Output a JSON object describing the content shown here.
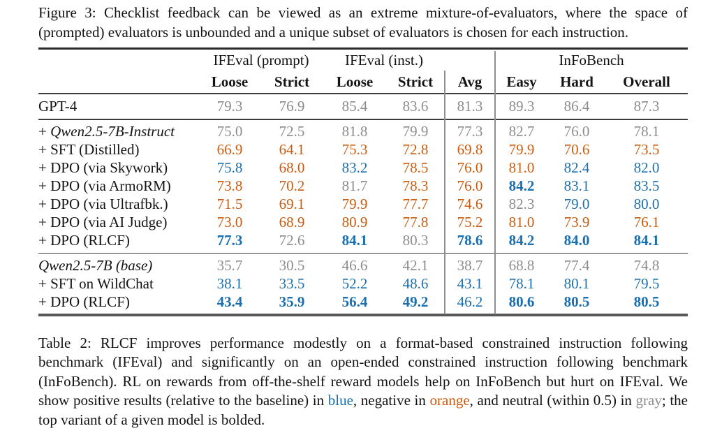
{
  "colors": {
    "ink": "#131313",
    "blue": "#1b6faf",
    "orange": "#cc5b0e",
    "gray": "#8c8c8c"
  },
  "figure_caption": "Figure 3: Checklist feedback can be viewed as an extreme mixture-of-evaluators, where the space of (prompted) evaluators is unbounded and a unique subset of evaluators is chosen for each instruction.",
  "chart_data": {
    "type": "table",
    "title": "Table 2 results",
    "columns": [
      "IFEval (prompt) Loose",
      "IFEval (prompt) Strict",
      "IFEval (inst.) Loose",
      "IFEval (inst.) Strict",
      "Avg",
      "InFoBench Easy",
      "InFoBench Hard",
      "InFoBench Overall"
    ],
    "rows": [
      {
        "model": "GPT-4",
        "values": [
          79.3,
          76.9,
          85.4,
          83.6,
          81.3,
          89.3,
          86.4,
          87.3
        ]
      },
      {
        "model": "+ Qwen2.5-7B-Instruct",
        "values": [
          75.0,
          72.5,
          81.8,
          79.9,
          77.3,
          82.7,
          76.0,
          78.1
        ]
      },
      {
        "model": "+ SFT (Distilled)",
        "values": [
          66.9,
          64.1,
          75.3,
          72.8,
          69.8,
          79.9,
          70.6,
          73.5
        ]
      },
      {
        "model": "+ DPO (via Skywork)",
        "values": [
          75.8,
          68.0,
          83.2,
          78.5,
          76.0,
          81.0,
          82.4,
          82.0
        ]
      },
      {
        "model": "+ DPO (via ArmoRM)",
        "values": [
          73.8,
          70.2,
          81.7,
          78.3,
          76.0,
          84.2,
          83.1,
          83.5
        ]
      },
      {
        "model": "+ DPO (via Ultrafbk.)",
        "values": [
          71.5,
          69.1,
          79.9,
          77.7,
          74.6,
          82.3,
          79.0,
          80.0
        ]
      },
      {
        "model": "+ DPO (via AI Judge)",
        "values": [
          73.0,
          68.9,
          80.9,
          77.8,
          75.2,
          81.0,
          73.9,
          76.1
        ]
      },
      {
        "model": "+ DPO (RLCF)",
        "values": [
          77.3,
          72.6,
          84.1,
          80.3,
          78.6,
          84.2,
          84.0,
          84.1
        ]
      },
      {
        "model": "Qwen2.5-7B (base)",
        "values": [
          35.7,
          30.5,
          46.6,
          42.1,
          38.7,
          68.8,
          77.4,
          74.8
        ]
      },
      {
        "model": "+ SFT on WildChat",
        "values": [
          38.1,
          33.5,
          52.2,
          48.6,
          43.1,
          78.1,
          80.1,
          79.5
        ]
      },
      {
        "model": "+ DPO (RLCF)",
        "values": [
          43.4,
          35.9,
          56.4,
          49.2,
          46.2,
          80.6,
          80.5,
          80.5
        ]
      }
    ]
  },
  "table": {
    "column_groups": [
      {
        "label": "IFEval (prompt)",
        "span": 2
      },
      {
        "label": "IFEval (inst.)",
        "span": 2
      },
      {
        "label": "",
        "span": 1
      },
      {
        "label": "InFoBench",
        "span": 3
      }
    ],
    "columns": [
      "Loose",
      "Strict",
      "Loose",
      "Strict",
      "Avg",
      "Easy",
      "Hard",
      "Overall"
    ],
    "sections": [
      {
        "name": "gpt4",
        "rows": [
          {
            "prefix": "",
            "label": "GPT-4",
            "italic": false,
            "cells": [
              {
                "v": "79.3",
                "c": "gray",
                "b": false
              },
              {
                "v": "76.9",
                "c": "gray",
                "b": false
              },
              {
                "v": "85.4",
                "c": "gray",
                "b": false
              },
              {
                "v": "83.6",
                "c": "gray",
                "b": false
              },
              {
                "v": "81.3",
                "c": "gray",
                "b": false
              },
              {
                "v": "89.3",
                "c": "gray",
                "b": false
              },
              {
                "v": "86.4",
                "c": "gray",
                "b": false
              },
              {
                "v": "87.3",
                "c": "gray",
                "b": false
              }
            ]
          }
        ]
      },
      {
        "name": "instruct",
        "rows": [
          {
            "prefix": "+ ",
            "label": "Qwen2.5-7B-Instruct",
            "italic": true,
            "cells": [
              {
                "v": "75.0",
                "c": "gray",
                "b": false
              },
              {
                "v": "72.5",
                "c": "gray",
                "b": false
              },
              {
                "v": "81.8",
                "c": "gray",
                "b": false
              },
              {
                "v": "79.9",
                "c": "gray",
                "b": false
              },
              {
                "v": "77.3",
                "c": "gray",
                "b": false
              },
              {
                "v": "82.7",
                "c": "gray",
                "b": false
              },
              {
                "v": "76.0",
                "c": "gray",
                "b": false
              },
              {
                "v": "78.1",
                "c": "gray",
                "b": false
              }
            ]
          },
          {
            "prefix": "",
            "label": "+ SFT (Distilled)",
            "italic": false,
            "cells": [
              {
                "v": "66.9",
                "c": "orange",
                "b": false
              },
              {
                "v": "64.1",
                "c": "orange",
                "b": false
              },
              {
                "v": "75.3",
                "c": "orange",
                "b": false
              },
              {
                "v": "72.8",
                "c": "orange",
                "b": false
              },
              {
                "v": "69.8",
                "c": "orange",
                "b": false
              },
              {
                "v": "79.9",
                "c": "orange",
                "b": false
              },
              {
                "v": "70.6",
                "c": "orange",
                "b": false
              },
              {
                "v": "73.5",
                "c": "orange",
                "b": false
              }
            ]
          },
          {
            "prefix": "",
            "label": "+ DPO (via Skywork)",
            "italic": false,
            "cells": [
              {
                "v": "75.8",
                "c": "blue",
                "b": false
              },
              {
                "v": "68.0",
                "c": "orange",
                "b": false
              },
              {
                "v": "83.2",
                "c": "blue",
                "b": false
              },
              {
                "v": "78.5",
                "c": "orange",
                "b": false
              },
              {
                "v": "76.0",
                "c": "orange",
                "b": false
              },
              {
                "v": "81.0",
                "c": "orange",
                "b": false
              },
              {
                "v": "82.4",
                "c": "blue",
                "b": false
              },
              {
                "v": "82.0",
                "c": "blue",
                "b": false
              }
            ]
          },
          {
            "prefix": "",
            "label": "+ DPO (via ArmoRM)",
            "italic": false,
            "cells": [
              {
                "v": "73.8",
                "c": "orange",
                "b": false
              },
              {
                "v": "70.2",
                "c": "orange",
                "b": false
              },
              {
                "v": "81.7",
                "c": "gray",
                "b": false
              },
              {
                "v": "78.3",
                "c": "orange",
                "b": false
              },
              {
                "v": "76.0",
                "c": "orange",
                "b": false
              },
              {
                "v": "84.2",
                "c": "blue",
                "b": true
              },
              {
                "v": "83.1",
                "c": "blue",
                "b": false
              },
              {
                "v": "83.5",
                "c": "blue",
                "b": false
              }
            ]
          },
          {
            "prefix": "",
            "label": "+ DPO (via Ultrafbk.)",
            "italic": false,
            "cells": [
              {
                "v": "71.5",
                "c": "orange",
                "b": false
              },
              {
                "v": "69.1",
                "c": "orange",
                "b": false
              },
              {
                "v": "79.9",
                "c": "orange",
                "b": false
              },
              {
                "v": "77.7",
                "c": "orange",
                "b": false
              },
              {
                "v": "74.6",
                "c": "orange",
                "b": false
              },
              {
                "v": "82.3",
                "c": "gray",
                "b": false
              },
              {
                "v": "79.0",
                "c": "blue",
                "b": false
              },
              {
                "v": "80.0",
                "c": "blue",
                "b": false
              }
            ]
          },
          {
            "prefix": "",
            "label": "+ DPO (via AI Judge)",
            "italic": false,
            "cells": [
              {
                "v": "73.0",
                "c": "orange",
                "b": false
              },
              {
                "v": "68.9",
                "c": "orange",
                "b": false
              },
              {
                "v": "80.9",
                "c": "orange",
                "b": false
              },
              {
                "v": "77.8",
                "c": "orange",
                "b": false
              },
              {
                "v": "75.2",
                "c": "orange",
                "b": false
              },
              {
                "v": "81.0",
                "c": "orange",
                "b": false
              },
              {
                "v": "73.9",
                "c": "orange",
                "b": false
              },
              {
                "v": "76.1",
                "c": "orange",
                "b": false
              }
            ]
          },
          {
            "prefix": "",
            "label": "+ DPO (RLCF)",
            "italic": false,
            "cells": [
              {
                "v": "77.3",
                "c": "blue",
                "b": true
              },
              {
                "v": "72.6",
                "c": "gray",
                "b": false
              },
              {
                "v": "84.1",
                "c": "blue",
                "b": true
              },
              {
                "v": "80.3",
                "c": "gray",
                "b": false
              },
              {
                "v": "78.6",
                "c": "blue",
                "b": true
              },
              {
                "v": "84.2",
                "c": "blue",
                "b": true
              },
              {
                "v": "84.0",
                "c": "blue",
                "b": true
              },
              {
                "v": "84.1",
                "c": "blue",
                "b": true
              }
            ]
          }
        ]
      },
      {
        "name": "base",
        "rows": [
          {
            "prefix": "",
            "label": "Qwen2.5-7B (base)",
            "italic": true,
            "cells": [
              {
                "v": "35.7",
                "c": "gray",
                "b": false
              },
              {
                "v": "30.5",
                "c": "gray",
                "b": false
              },
              {
                "v": "46.6",
                "c": "gray",
                "b": false
              },
              {
                "v": "42.1",
                "c": "gray",
                "b": false
              },
              {
                "v": "38.7",
                "c": "gray",
                "b": false
              },
              {
                "v": "68.8",
                "c": "gray",
                "b": false
              },
              {
                "v": "77.4",
                "c": "gray",
                "b": false
              },
              {
                "v": "74.8",
                "c": "gray",
                "b": false
              }
            ]
          },
          {
            "prefix": "",
            "label": "+ SFT on WildChat",
            "italic": false,
            "cells": [
              {
                "v": "38.1",
                "c": "blue",
                "b": false
              },
              {
                "v": "33.5",
                "c": "blue",
                "b": false
              },
              {
                "v": "52.2",
                "c": "blue",
                "b": false
              },
              {
                "v": "48.6",
                "c": "blue",
                "b": false
              },
              {
                "v": "43.1",
                "c": "blue",
                "b": false
              },
              {
                "v": "78.1",
                "c": "blue",
                "b": false
              },
              {
                "v": "80.1",
                "c": "blue",
                "b": false
              },
              {
                "v": "79.5",
                "c": "blue",
                "b": false
              }
            ]
          },
          {
            "prefix": "",
            "label": "+ DPO (RLCF)",
            "italic": false,
            "cells": [
              {
                "v": "43.4",
                "c": "blue",
                "b": true
              },
              {
                "v": "35.9",
                "c": "blue",
                "b": true
              },
              {
                "v": "56.4",
                "c": "blue",
                "b": true
              },
              {
                "v": "49.2",
                "c": "blue",
                "b": true
              },
              {
                "v": "46.2",
                "c": "blue",
                "b": false
              },
              {
                "v": "80.6",
                "c": "blue",
                "b": true
              },
              {
                "v": "80.5",
                "c": "blue",
                "b": true
              },
              {
                "v": "80.5",
                "c": "blue",
                "b": true
              }
            ]
          }
        ]
      }
    ]
  },
  "table_caption_segments": [
    {
      "t": "Table 2: RLCF improves performance modestly on a format-based constrained instruction following benchmark (IFEval) and significantly on an open-ended constrained instruction following benchmark (InFoBench). RL on rewards from off-the-shelf reward models help on InFoBench but hurt on IFEval. We show positive results (relative to the baseline) in ",
      "c": "ink"
    },
    {
      "t": "blue",
      "c": "blue"
    },
    {
      "t": ", negative in ",
      "c": "ink"
    },
    {
      "t": "orange",
      "c": "orange"
    },
    {
      "t": ", and neutral (within 0.5) in ",
      "c": "ink"
    },
    {
      "t": "gray",
      "c": "gray"
    },
    {
      "t": "; the top variant of a given model is bolded.",
      "c": "ink"
    }
  ]
}
